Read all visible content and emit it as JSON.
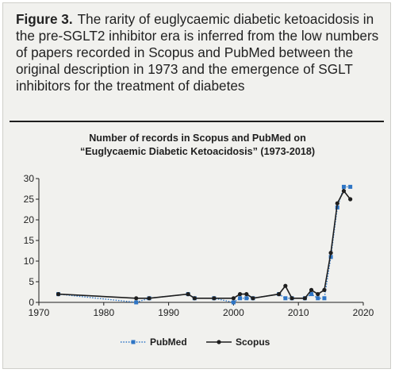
{
  "figure": {
    "label": "Figure 3.",
    "caption": "The rarity of euglycaemic diabetic ketoacidosis in the pre-SGLT2 inhibitor era is inferred from the low numbers of papers recorded in Scopus and PubMed between the original description in 1973 and the emergence of SGLT inhibitors for the treatment of diabetes"
  },
  "chart_data": {
    "type": "line",
    "title_line1": "Number of records in Scopus and PubMed on",
    "title_line2": "“Euglycaemic Diabetic Ketoacidosis” (1973-2018)",
    "xlim": [
      1970,
      2020
    ],
    "ylim": [
      0,
      30
    ],
    "x_ticks": [
      1970,
      1980,
      1990,
      2000,
      2010,
      2020
    ],
    "y_ticks": [
      0,
      5,
      10,
      15,
      20,
      25,
      30
    ],
    "grid": false,
    "legend_position": "bottom-center",
    "series": [
      {
        "name": "PubMed",
        "color": "#2e75c5",
        "style": "dotted",
        "marker": "square",
        "x": [
          1973,
          1985,
          1987,
          1993,
          1994,
          1997,
          2000,
          2001,
          2002,
          2003,
          2007,
          2008,
          2009,
          2011,
          2012,
          2013,
          2014,
          2015,
          2016,
          2017,
          2018
        ],
        "y": [
          2,
          0,
          1,
          2,
          1,
          1,
          0,
          1,
          1,
          1,
          2,
          1,
          1,
          1,
          2,
          1,
          1,
          11,
          23,
          28,
          28
        ]
      },
      {
        "name": "Scopus",
        "color": "#1e1e1e",
        "style": "solid",
        "marker": "circle",
        "x": [
          1973,
          1985,
          1987,
          1993,
          1994,
          1997,
          2000,
          2001,
          2002,
          2003,
          2007,
          2008,
          2009,
          2011,
          2012,
          2013,
          2014,
          2015,
          2016,
          2017,
          2018
        ],
        "y": [
          2,
          1,
          1,
          2,
          1,
          1,
          1,
          2,
          2,
          1,
          2,
          4,
          1,
          1,
          3,
          2,
          3,
          12,
          24,
          27,
          25
        ]
      }
    ]
  }
}
